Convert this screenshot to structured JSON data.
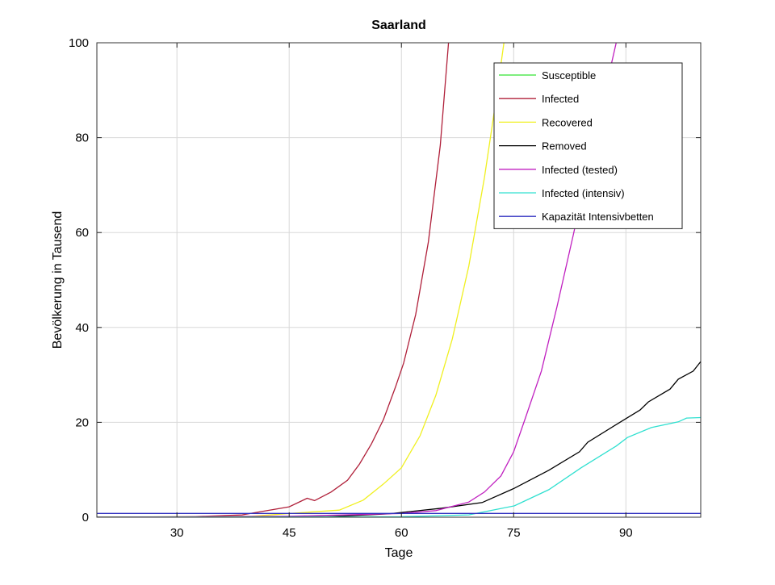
{
  "chart_data": {
    "type": "line",
    "title": "Saarland",
    "xlabel": "Tage",
    "ylabel": "Bevölkerung in Tausend",
    "xlim": [
      19.3,
      100
    ],
    "ylim": [
      0,
      100
    ],
    "xticks": [
      30,
      45,
      60,
      75,
      90
    ],
    "yticks": [
      0,
      20,
      40,
      60,
      80,
      100
    ],
    "grid": true,
    "legend_position": "top-right",
    "series": [
      {
        "name": "Susceptible",
        "color": "#33e333",
        "x": [],
        "y": []
      },
      {
        "name": "Infected",
        "color": "#b0203a",
        "x": [
          19.3,
          30,
          38.7,
          45,
          47.4,
          48.4,
          50.6,
          52.8,
          54.4,
          56,
          57.6,
          59.2,
          60.3,
          61.9,
          63.6,
          65.2,
          66.3,
          67
        ],
        "y": [
          0,
          0,
          0.5,
          2.2,
          4.0,
          3.5,
          5.3,
          7.8,
          11.2,
          15.5,
          20.6,
          27.4,
          32.5,
          42.7,
          58,
          78.4,
          100,
          112
        ]
      },
      {
        "name": "Recovered",
        "color": "#f0f020",
        "x": [
          19.3,
          40,
          47,
          51.7,
          54.9,
          57.6,
          60,
          62.5,
          64.6,
          66.8,
          69,
          71.1,
          72.7,
          73.7,
          74.3
        ],
        "y": [
          0,
          0.2,
          1.0,
          1.5,
          3.6,
          7,
          10.4,
          17.2,
          25.7,
          37.6,
          52.9,
          71.6,
          88.6,
          100,
          108
        ]
      },
      {
        "name": "Removed",
        "color": "#000000",
        "x": [
          19.3,
          50,
          58.2,
          65.4,
          70.8,
          75.1,
          79.7,
          83.8,
          84.9,
          89.8,
          91.9,
          93,
          95.9,
          97,
          99,
          100
        ],
        "y": [
          0,
          0.1,
          0.7,
          1.9,
          3.1,
          6.1,
          9.9,
          13.8,
          15.8,
          20.6,
          22.6,
          24.3,
          27,
          29.1,
          30.8,
          32.8
        ]
      },
      {
        "name": "Infected (tested)",
        "color": "#c020c0",
        "x": [
          19.3,
          45,
          60,
          64.6,
          69,
          71.1,
          73.3,
          75,
          76.5,
          78.7,
          80.8,
          83,
          85.1,
          87.3,
          88.7,
          89.3
        ],
        "y": [
          0,
          0.2,
          0.8,
          1.4,
          3.2,
          5.3,
          8.7,
          13.8,
          20.6,
          30.8,
          44.4,
          59.7,
          75,
          90.3,
          100,
          106
        ]
      },
      {
        "name": "Infected (intensiv)",
        "color": "#30e0d0",
        "x": [
          19.3,
          60,
          69,
          75.1,
          79.7,
          84,
          88.7,
          90.2,
          93.4,
          97,
          98.1,
          100
        ],
        "y": [
          0,
          0.1,
          0.5,
          2.4,
          5.8,
          10.4,
          15,
          16.8,
          18.9,
          20.1,
          20.9,
          21
        ]
      },
      {
        "name": "Kapazität Intensivbetten",
        "color": "#3030c0",
        "x": [
          19.3,
          100
        ],
        "y": [
          0.8,
          0.8
        ]
      }
    ]
  }
}
